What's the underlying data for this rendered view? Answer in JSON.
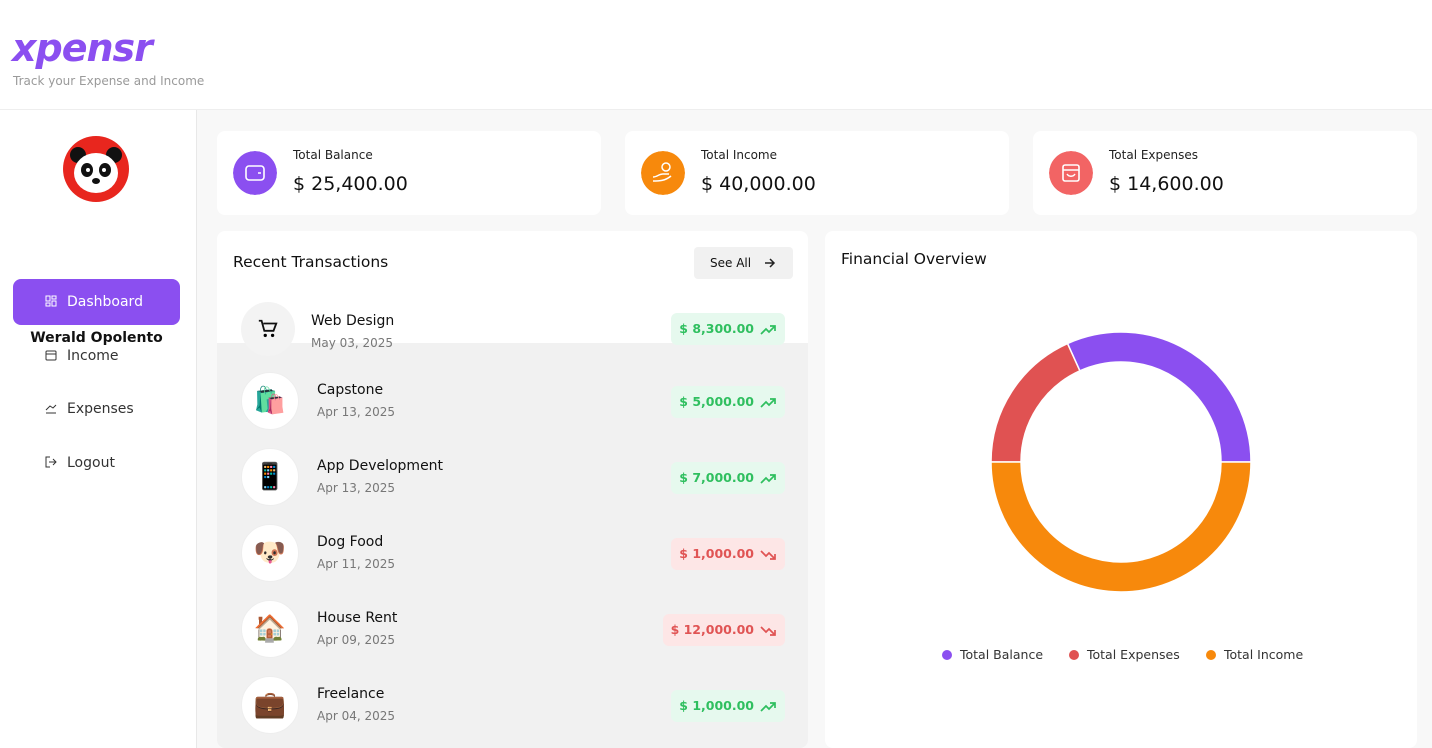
{
  "header": {
    "logo": "xpensr",
    "tagline": "Track your Expense and Income"
  },
  "sidebar": {
    "user": "Werald Opolento",
    "nav": [
      {
        "label": "Dashboard",
        "active": true
      },
      {
        "label": "Income",
        "active": false
      },
      {
        "label": "Expenses",
        "active": false
      },
      {
        "label": "Logout",
        "active": false
      }
    ]
  },
  "cards": [
    {
      "label": "Total Balance",
      "value": "$ 25,400.00",
      "color": "#8b4ff0"
    },
    {
      "label": "Total Income",
      "value": "$ 40,000.00",
      "color": "#f7890c"
    },
    {
      "label": "Total Expenses",
      "value": "$ 14,600.00",
      "color": "#f26464"
    }
  ],
  "transactions": {
    "title": "Recent Transactions",
    "button": "See All",
    "items": [
      {
        "name": "Web Design",
        "date": "May 03, 2025",
        "amount": "$ 8,300.00",
        "kind": "income"
      },
      {
        "icon": "🛍️",
        "name": "Capstone",
        "date": "Apr 13, 2025",
        "amount": "$ 5,000.00",
        "kind": "income"
      },
      {
        "icon": "📱",
        "name": "App Development",
        "date": "Apr 13, 2025",
        "amount": "$ 7,000.00",
        "kind": "income"
      },
      {
        "icon": "🐶",
        "name": "Dog Food",
        "date": "Apr 11, 2025",
        "amount": "$ 1,000.00",
        "kind": "expense"
      },
      {
        "icon": "🏠",
        "name": "House Rent",
        "date": "Apr 09, 2025",
        "amount": "$ 12,000.00",
        "kind": "expense"
      },
      {
        "icon": "💼",
        "name": "Freelance",
        "date": "Apr 04, 2025",
        "amount": "$ 1,000.00",
        "kind": "income"
      }
    ]
  },
  "overview": {
    "title": "Financial Overview",
    "type": "pie",
    "series": [
      {
        "name": "Total Balance",
        "color": "#8b4ff0",
        "value": 25400
      },
      {
        "name": "Total Expenses",
        "color": "#e05252",
        "value": 14600
      },
      {
        "name": "Total Income",
        "color": "#f7890c",
        "value": 40000
      }
    ]
  }
}
